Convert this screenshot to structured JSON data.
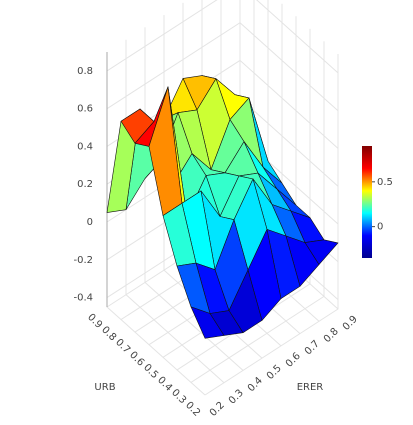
{
  "chart_data": {
    "type": "surface",
    "x_label": "ERER",
    "y_label": "URB",
    "x": [
      0.2,
      0.3,
      0.4,
      0.5,
      0.6,
      0.7,
      0.8,
      0.9
    ],
    "y": [
      0.2,
      0.3,
      0.4,
      0.5,
      0.6,
      0.7,
      0.8,
      0.9
    ],
    "z": [
      [
        -0.15,
        -0.2,
        -0.25,
        -0.25,
        -0.2,
        -0.2,
        -0.15,
        -0.1
      ],
      [
        -0.05,
        -0.15,
        -0.2,
        -0.05,
        0.1,
        0.0,
        -0.1,
        -0.15
      ],
      [
        0.1,
        0.05,
        -0.05,
        0.15,
        0.3,
        0.1,
        0.0,
        -0.1
      ],
      [
        0.3,
        0.3,
        0.3,
        0.1,
        0.25,
        0.2,
        0.05,
        -0.1
      ],
      [
        0.6,
        0.85,
        0.1,
        0.25,
        0.2,
        0.3,
        0.1,
        -0.05
      ],
      [
        0.55,
        0.6,
        0.2,
        0.3,
        0.15,
        0.35,
        0.4,
        0.0
      ],
      [
        0.6,
        0.6,
        0.25,
        0.45,
        0.4,
        0.5,
        0.35,
        0.05
      ],
      [
        0.05,
        0.0,
        0.1,
        0.35,
        0.5,
        0.45,
        0.3,
        0.05
      ]
    ],
    "xlim": [
      0.2,
      0.9
    ],
    "ylim": [
      0.2,
      0.9
    ],
    "zlim": [
      -0.45,
      0.9
    ],
    "xticks": [
      0.2,
      0.3,
      0.4,
      0.5,
      0.6,
      0.7,
      0.8,
      0.9
    ],
    "yticks": [
      0.2,
      0.3,
      0.4,
      0.5,
      0.6,
      0.7,
      0.8,
      0.9
    ],
    "zticks": [
      -0.4,
      -0.2,
      0,
      0.2,
      0.4,
      0.6,
      0.8
    ],
    "colorscale": [
      "#00008f",
      "#0000ff",
      "#00ffff",
      "#ffff00",
      "#ff0000",
      "#800000"
    ],
    "clim": [
      -0.35,
      0.9
    ],
    "colorbar_ticks": [
      0,
      0.5
    ],
    "grid": true
  }
}
